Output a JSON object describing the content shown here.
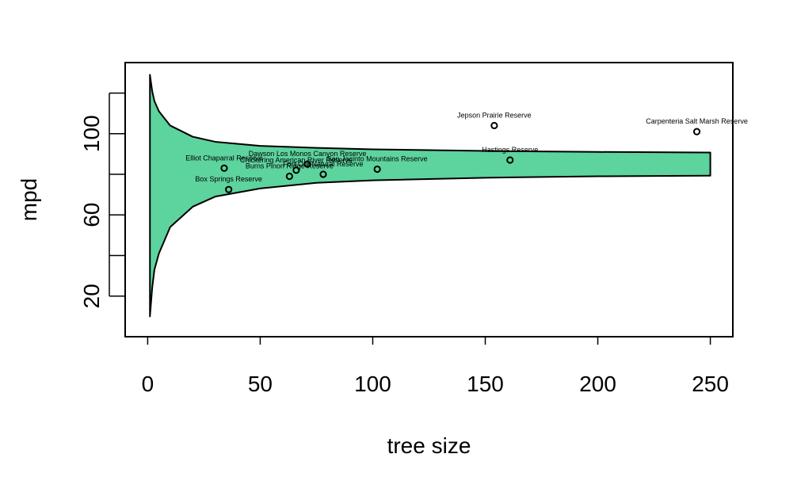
{
  "chart_data": {
    "type": "scatter",
    "title": "",
    "xlabel": "tree size",
    "ylabel": "mpd",
    "xlim": [
      -10,
      260
    ],
    "ylim": [
      0,
      135
    ],
    "x_ticks": [
      0,
      50,
      100,
      150,
      200,
      250
    ],
    "x_tick_labels": [
      "0",
      "50",
      "100",
      "150",
      "200",
      "250"
    ],
    "y_ticks": [
      20,
      40,
      60,
      80,
      100,
      120
    ],
    "y_tick_labels": [
      "20",
      "",
      "60",
      "",
      "100",
      ""
    ],
    "envelope": {
      "center": 85,
      "x": [
        1,
        2,
        3,
        5,
        10,
        20,
        30,
        50,
        75,
        100,
        150,
        200,
        250
      ],
      "upper": [
        129,
        121,
        116,
        111,
        104,
        98.5,
        96,
        94,
        93,
        92.3,
        91.5,
        91.0,
        90.7
      ],
      "lower": [
        10,
        24,
        33,
        41,
        54,
        64,
        69,
        73,
        75.8,
        77,
        78.3,
        79.0,
        79.3
      ],
      "fill_color": "#5dd39e",
      "stroke_color": "#000000"
    },
    "points": [
      {
        "x": 34,
        "y": 83,
        "label": "Elliot Chaparral Reserve"
      },
      {
        "x": 36,
        "y": 72.5,
        "label": "Box Springs Reserve"
      },
      {
        "x": 63,
        "y": 79,
        "label": "Burns Pinon Ridge Reserve"
      },
      {
        "x": 66,
        "y": 82,
        "label": "Chickering American River Reserve"
      },
      {
        "x": 71,
        "y": 85,
        "label": "Dawson Los Monos Canyon Reserve"
      },
      {
        "x": 78,
        "y": 80,
        "label": "Fort Ord Natural Reserve"
      },
      {
        "x": 102,
        "y": 82.5,
        "label": "San Jacinto Mountains Reserve"
      },
      {
        "x": 154,
        "y": 104,
        "label": "Jepson Prairie Reserve"
      },
      {
        "x": 161,
        "y": 87,
        "label": "Hastings Reserve"
      },
      {
        "x": 244,
        "y": 101,
        "label": "Carpenteria Salt Marsh Reserve"
      }
    ]
  }
}
